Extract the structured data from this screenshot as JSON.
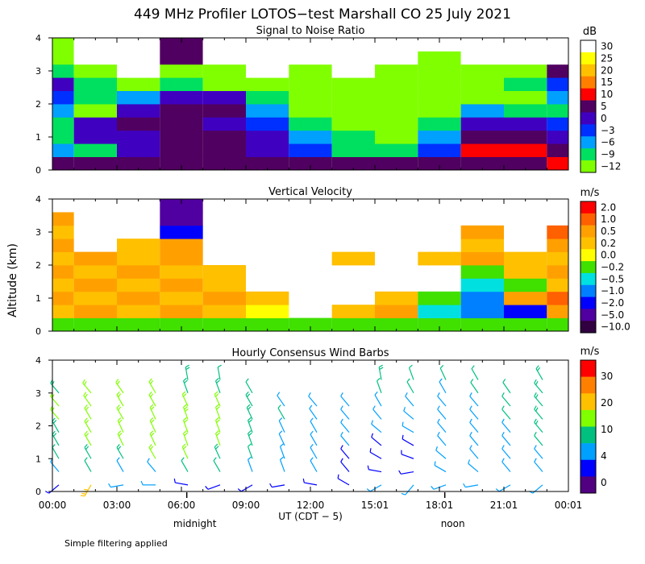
{
  "title": "449 MHz Profiler LOTOS−test Marshall CO 25 July 2021",
  "footnote": "Simple filtering applied",
  "colors": {
    "missing": "#ffffff"
  },
  "chart_data": [
    {
      "type": "heatmap",
      "title": "Signal to Noise Ratio",
      "ylabel": "",
      "ylim": [
        0,
        4
      ],
      "yticks": [
        "0",
        "1",
        "2",
        "3",
        "4"
      ],
      "xlim_hours": [
        0,
        24
      ],
      "colorbar_unit": "dB",
      "colorbar_labels": [
        "30",
        "25",
        "20",
        "15",
        "10",
        "5",
        "0",
        "−3",
        "−6",
        "−9",
        "−12"
      ],
      "colorbar_colors": [
        "#ffffff",
        "#ffff00",
        "#ffc000",
        "#ff8000",
        "#ff0000",
        "#500060",
        "#4000c0",
        "#0030ff",
        "#00a0ff",
        "#00e060",
        "#80ff00"
      ],
      "rows_altitude_km": [
        0.2,
        0.6,
        1.0,
        1.4,
        1.8,
        2.2,
        2.6,
        3.0,
        3.4,
        3.8
      ],
      "cols_hours": [
        0,
        2,
        4,
        6,
        8,
        10,
        12,
        14,
        16,
        18,
        20,
        22,
        24
      ],
      "values": [
        [
          5,
          5,
          5,
          5,
          5,
          5,
          5,
          5,
          5,
          5,
          5,
          5,
          10
        ],
        [
          -6,
          -9,
          0,
          5,
          5,
          0,
          -3,
          -9,
          -9,
          -3,
          10,
          10,
          5
        ],
        [
          -9,
          0,
          0,
          5,
          5,
          0,
          -6,
          -9,
          -12,
          -6,
          5,
          5,
          0
        ],
        [
          -9,
          0,
          5,
          5,
          0,
          -3,
          -9,
          -12,
          -12,
          -9,
          0,
          0,
          -3
        ],
        [
          -6,
          -12,
          0,
          5,
          5,
          -6,
          -12,
          -12,
          -12,
          -12,
          -6,
          -9,
          -9
        ],
        [
          -3,
          -9,
          -6,
          0,
          0,
          -9,
          -12,
          -12,
          -12,
          -12,
          -12,
          -12,
          -6
        ],
        [
          0,
          -9,
          -12,
          -9,
          -12,
          -12,
          -12,
          -12,
          -12,
          -12,
          -12,
          -9,
          -3
        ],
        [
          -9,
          -12,
          30,
          -12,
          -12,
          30,
          -12,
          30,
          -12,
          -12,
          -12,
          -12,
          5
        ],
        [
          -12,
          30,
          30,
          5,
          30,
          30,
          30,
          30,
          30,
          -12,
          30,
          30,
          30
        ],
        [
          -12,
          30,
          30,
          5,
          30,
          30,
          30,
          30,
          30,
          30,
          30,
          30,
          30
        ]
      ]
    },
    {
      "type": "heatmap",
      "title": "Vertical Velocity",
      "ylabel": "Altitude (km)",
      "ylim": [
        0,
        4
      ],
      "yticks": [
        "0",
        "1",
        "2",
        "3",
        "4"
      ],
      "xlim_hours": [
        0,
        24
      ],
      "colorbar_unit": "m/s",
      "colorbar_labels": [
        "2.0",
        "1.0",
        "0.5",
        "0.2",
        "0.0",
        "−0.2",
        "−0.5",
        "−1.0",
        "−2.0",
        "−5.0",
        "−10.0"
      ],
      "colorbar_colors": [
        "#ff0000",
        "#ff6000",
        "#ffa000",
        "#ffc000",
        "#ffff00",
        "#40e000",
        "#00e0e0",
        "#0080ff",
        "#0000ff",
        "#5000a0",
        "#300040"
      ],
      "rows_altitude_km": [
        0.2,
        0.6,
        1.0,
        1.4,
        1.8,
        2.2,
        2.6,
        3.0,
        3.4,
        3.8
      ],
      "cols_hours": [
        0,
        2,
        4,
        6,
        8,
        10,
        12,
        14,
        16,
        18,
        20,
        22,
        24
      ],
      "values": [
        [
          -0.2,
          -0.2,
          -0.2,
          -0.2,
          -0.2,
          -0.2,
          -0.2,
          -0.2,
          -0.2,
          -0.2,
          -0.2,
          -0.2,
          -0.2
        ],
        [
          0.2,
          0.5,
          0.2,
          0.5,
          0.2,
          0.0,
          null,
          0.2,
          0.5,
          -0.5,
          -1.0,
          -2.0,
          0.5
        ],
        [
          0.5,
          0.2,
          0.5,
          0.2,
          0.5,
          0.2,
          null,
          null,
          0.2,
          -0.2,
          -1.0,
          0.5,
          1.0
        ],
        [
          0.2,
          0.5,
          0.2,
          0.5,
          0.2,
          null,
          null,
          null,
          null,
          null,
          -0.5,
          -0.2,
          0.2
        ],
        [
          0.5,
          0.2,
          0.5,
          0.2,
          0.2,
          null,
          null,
          null,
          null,
          null,
          -0.2,
          0.2,
          0.5
        ],
        [
          0.2,
          0.5,
          0.2,
          0.5,
          null,
          null,
          null,
          0.2,
          null,
          0.2,
          0.5,
          0.2,
          0.2
        ],
        [
          0.5,
          null,
          0.2,
          0.5,
          null,
          null,
          null,
          null,
          null,
          null,
          0.2,
          null,
          0.5
        ],
        [
          0.2,
          null,
          null,
          -2.0,
          null,
          null,
          null,
          null,
          null,
          null,
          0.5,
          null,
          1.0
        ],
        [
          0.5,
          null,
          null,
          -5.0,
          null,
          null,
          null,
          null,
          null,
          null,
          null,
          null,
          null
        ],
        [
          null,
          null,
          null,
          -5.0,
          null,
          null,
          null,
          null,
          null,
          null,
          null,
          null,
          null
        ]
      ]
    },
    {
      "type": "barbs",
      "title": "Hourly Consensus Wind Barbs",
      "ylabel": "",
      "ylim": [
        0,
        4
      ],
      "yticks": [
        "0",
        "1",
        "2",
        "3",
        "4"
      ],
      "xlim_hours": [
        0,
        24
      ],
      "colorbar_unit": "m/s",
      "colorbar_labels": [
        "30",
        "20",
        "10",
        "4",
        "0"
      ],
      "colorbar_colors": [
        "#ff0000",
        "#ff8000",
        "#ffc000",
        "#80ff00",
        "#00c080",
        "#00a0ff",
        "#0000ff",
        "#500080"
      ],
      "speed_bins_ms": [
        0,
        2,
        4,
        7,
        10,
        15,
        20,
        25,
        30
      ],
      "rows_altitude_km": [
        0.2,
        0.6,
        1.0,
        1.4,
        1.8,
        2.2,
        2.6,
        3.0,
        3.4
      ],
      "cols_hours": [
        0,
        1.5,
        3,
        4.5,
        6,
        7.5,
        9,
        10.5,
        12,
        13.5,
        15,
        16.5,
        18,
        19.5,
        21,
        22.5
      ],
      "speeds_ms": [
        [
          3,
          18,
          5,
          4,
          3,
          3,
          2,
          3,
          3,
          3,
          4,
          4,
          4,
          5,
          5,
          5
        ],
        [
          6,
          7,
          6,
          6,
          7,
          7,
          5,
          5,
          4,
          3,
          3,
          3,
          5,
          6,
          6,
          5
        ],
        [
          7,
          9,
          9,
          10,
          11,
          9,
          7,
          6,
          5,
          3,
          3,
          3,
          4,
          5,
          5,
          6
        ],
        [
          8,
          10,
          10,
          11,
          12,
          11,
          8,
          6,
          5,
          4,
          3,
          3,
          4,
          5,
          6,
          7
        ],
        [
          9,
          11,
          11,
          12,
          12,
          11,
          9,
          6,
          5,
          4,
          4,
          4,
          5,
          5,
          6,
          8
        ],
        [
          10,
          11,
          12,
          12,
          13,
          11,
          9,
          7,
          5,
          4,
          5,
          5,
          5,
          6,
          7,
          8
        ],
        [
          10,
          10,
          11,
          11,
          12,
          10,
          8,
          6,
          5,
          5,
          6,
          6,
          6,
          6,
          7,
          8
        ],
        [
          9,
          10,
          10,
          10,
          9,
          9,
          7,
          null,
          null,
          null,
          7,
          7,
          6,
          7,
          7,
          8
        ],
        [
          null,
          null,
          null,
          null,
          8,
          7,
          null,
          null,
          null,
          null,
          8,
          7,
          7,
          7,
          null,
          8
        ]
      ],
      "directions_deg": [
        [
          230,
          210,
          260,
          270,
          280,
          250,
          240,
          260,
          280,
          300,
          240,
          220,
          250,
          260,
          240,
          230
        ],
        [
          320,
          330,
          330,
          320,
          330,
          330,
          340,
          340,
          330,
          320,
          280,
          260,
          300,
          310,
          320,
          320
        ],
        [
          330,
          330,
          330,
          330,
          335,
          335,
          340,
          340,
          330,
          320,
          300,
          290,
          310,
          320,
          320,
          320
        ],
        [
          330,
          330,
          335,
          335,
          340,
          340,
          340,
          335,
          330,
          320,
          310,
          300,
          320,
          320,
          320,
          320
        ],
        [
          330,
          330,
          335,
          335,
          340,
          340,
          340,
          335,
          330,
          320,
          310,
          300,
          320,
          320,
          320,
          320
        ],
        [
          320,
          330,
          330,
          335,
          340,
          340,
          335,
          330,
          325,
          320,
          320,
          310,
          320,
          320,
          320,
          320
        ],
        [
          320,
          325,
          330,
          330,
          335,
          335,
          330,
          325,
          320,
          320,
          330,
          320,
          320,
          320,
          320,
          320
        ],
        [
          320,
          320,
          325,
          330,
          340,
          340,
          330,
          null,
          null,
          null,
          340,
          330,
          330,
          325,
          325,
          320
        ],
        [
          null,
          null,
          null,
          null,
          350,
          350,
          null,
          null,
          null,
          null,
          350,
          340,
          335,
          330,
          null,
          330
        ]
      ]
    }
  ],
  "x_axis": {
    "tick_labels": [
      "00:00",
      "03:00",
      "06:00",
      "09:00",
      "12:00",
      "15:01",
      "18:01",
      "21:01",
      "00:01"
    ],
    "tick_hours": [
      0,
      3,
      6,
      9,
      12,
      15,
      18,
      21,
      24
    ],
    "label": "UT  (CDT − 5)",
    "markers": [
      {
        "text": "midnight",
        "hour": 7
      },
      {
        "text": "noon",
        "hour": 19
      }
    ]
  }
}
